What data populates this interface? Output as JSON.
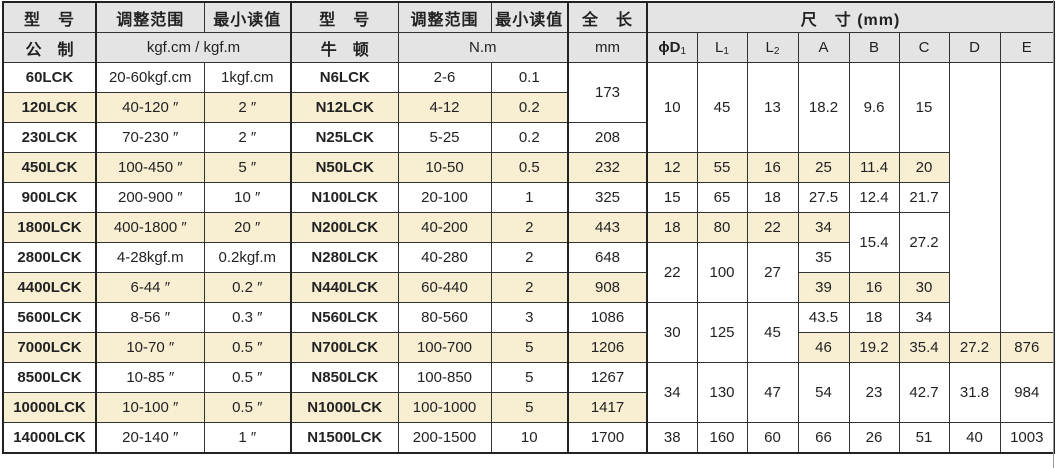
{
  "header": {
    "model": "型　号",
    "range": "调整范围",
    "min_reading": "最小读值",
    "n_model": "型　号",
    "n_range": "调整范围",
    "n_min_reading": "最小读值",
    "length": "全　长",
    "dimensions": "尺　寸 (mm)"
  },
  "units": {
    "metric": "公　制",
    "metric_unit": "kgf.cm / kgf.m",
    "newton": "牛　顿",
    "newton_unit": "N.m",
    "length_unit": "mm",
    "d1": "ϕD",
    "d1_sub": "1",
    "l1": "L",
    "l1_sub": "1",
    "l2": "L",
    "l2_sub": "2",
    "a": "A",
    "b": "B",
    "c": "C",
    "d": "D",
    "e": "E"
  },
  "colors": {
    "highlight": "#f8efd3",
    "header": "#e4e4e4"
  },
  "rows": [
    {
      "model": "60LCK",
      "range": "20-60kgf.cm",
      "min": "1kgf.cm",
      "n_model": "N6LCK",
      "n_range": "2-6",
      "n_min": "0.1",
      "len": "173",
      "d1": "10",
      "l1": "45",
      "l2": "13",
      "a": "18.2",
      "b": "9.6",
      "c": "15"
    },
    {
      "model": "120LCK",
      "range": "40-120 ″",
      "min": "2 ″",
      "n_model": "N12LCK",
      "n_range": "4-12",
      "n_min": "0.2"
    },
    {
      "model": "230LCK",
      "range": "70-230 ″",
      "min": "2 ″",
      "n_model": "N25LCK",
      "n_range": "5-25",
      "n_min": "0.2",
      "len": "208"
    },
    {
      "model": "450LCK",
      "range": "100-450 ″",
      "min": "5 ″",
      "n_model": "N50LCK",
      "n_range": "10-50",
      "n_min": "0.5",
      "len": "232",
      "d1": "12",
      "l1": "55",
      "l2": "16",
      "a": "25",
      "b": "11.4",
      "c": "20"
    },
    {
      "model": "900LCK",
      "range": "200-900 ″",
      "min": "10 ″",
      "n_model": "N100LCK",
      "n_range": "20-100",
      "n_min": "1",
      "len": "325",
      "d1": "15",
      "l1": "65",
      "l2": "18",
      "a": "27.5",
      "b": "12.4",
      "c": "21.7"
    },
    {
      "model": "1800LCK",
      "range": "400-1800 ″",
      "min": "20 ″",
      "n_model": "N200LCK",
      "n_range": "40-200",
      "n_min": "2",
      "len": "443",
      "d1": "18",
      "l1": "80",
      "l2": "22",
      "a": "34",
      "b": "15.4",
      "c": "27.2"
    },
    {
      "model": "2800LCK",
      "range": "4-28kgf.m",
      "min": "0.2kgf.m",
      "n_model": "N280LCK",
      "n_range": "40-280",
      "n_min": "2",
      "len": "648",
      "d1": "22",
      "l1": "100",
      "l2": "27",
      "a": "35"
    },
    {
      "model": "4400LCK",
      "range": "6-44 ″",
      "min": "0.2 ″",
      "n_model": "N440LCK",
      "n_range": "60-440",
      "n_min": "2",
      "len": "908",
      "a": "39",
      "b": "16",
      "c": "30"
    },
    {
      "model": "5600LCK",
      "range": "8-56 ″",
      "min": "0.3 ″",
      "n_model": "N560LCK",
      "n_range": "80-560",
      "n_min": "3",
      "len": "1086",
      "d1": "30",
      "l1": "125",
      "l2": "45",
      "a": "43.5",
      "b": "18",
      "c": "34"
    },
    {
      "model": "7000LCK",
      "range": "10-70 ″",
      "min": "0.5 ″",
      "n_model": "N700LCK",
      "n_range": "100-700",
      "n_min": "5",
      "len": "1206",
      "a": "46",
      "b": "19.2",
      "c": "35.4",
      "d": "27.2",
      "e": "876"
    },
    {
      "model": "8500LCK",
      "range": "10-85 ″",
      "min": "0.5 ″",
      "n_model": "N850LCK",
      "n_range": "100-850",
      "n_min": "5",
      "len": "1267",
      "d1": "34",
      "l1": "130",
      "l2": "47",
      "a": "54",
      "b": "23",
      "c": "42.7",
      "d": "31.8",
      "e": "984"
    },
    {
      "model": "10000LCK",
      "range": "10-100 ″",
      "min": "0.5 ″",
      "n_model": "N1000LCK",
      "n_range": "100-1000",
      "n_min": "5",
      "len": "1417"
    },
    {
      "model": "14000LCK",
      "range": "20-140 ″",
      "min": "1 ″",
      "n_model": "N1500LCK",
      "n_range": "200-1500",
      "n_min": "10",
      "len": "1700",
      "d1": "38",
      "l1": "160",
      "l2": "60",
      "a": "66",
      "b": "26",
      "c": "51",
      "d": "40",
      "e": "1003"
    }
  ]
}
